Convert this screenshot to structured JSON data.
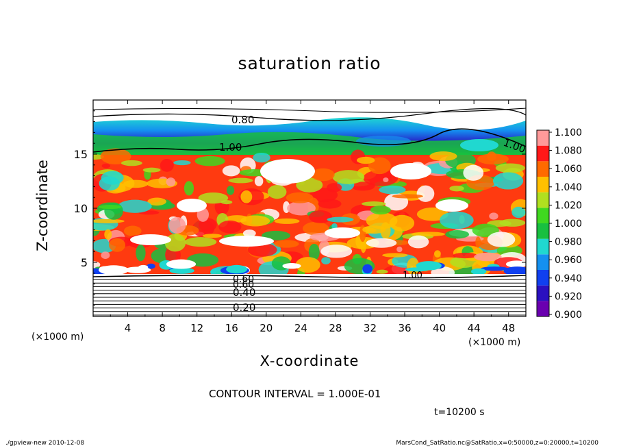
{
  "chart_data": {
    "type": "heatmap",
    "title": "saturation ratio",
    "xlabel": "X-coordinate",
    "ylabel": "Z-coordinate",
    "x_unit": "(×1000 m)",
    "y_unit": "(×1000 m)",
    "xlim": [
      0,
      50
    ],
    "ylim": [
      0,
      20
    ],
    "x_ticks": [
      "4",
      "8",
      "12",
      "16",
      "20",
      "24",
      "28",
      "32",
      "36",
      "40",
      "44",
      "48"
    ],
    "y_ticks": [
      "5",
      "10",
      "15"
    ],
    "colorbar": {
      "levels": [
        "0.900",
        "0.920",
        "0.940",
        "0.960",
        "0.980",
        "1.000",
        "1.020",
        "1.040",
        "1.060",
        "1.080",
        "1.100"
      ],
      "colors": [
        "#6a00b0",
        "#2a10c0",
        "#1040f0",
        "#1490f0",
        "#20d8d0",
        "#18c040",
        "#40d820",
        "#b0e020",
        "#ffc000",
        "#ff6a00",
        "#ff1818",
        "#ff9a9a"
      ]
    },
    "contour_labels": [
      "0.80",
      "1.00",
      "1.00",
      "1.00",
      "0.40",
      "0.20",
      "0.60",
      "0.60"
    ],
    "contour_interval_text": "CONTOUR INTERVAL = 1.000E-01",
    "time_text": "t=10200 s"
  },
  "footer": {
    "left": "./gpview-new   2010-12-08",
    "right": "MarsCond_SatRatio.nc@SatRatio,x=0:50000,z=0:20000,t=10200"
  }
}
